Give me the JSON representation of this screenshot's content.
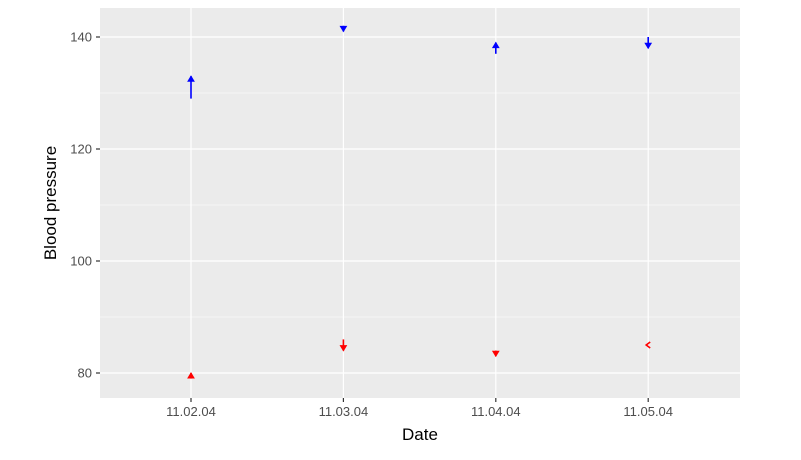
{
  "chart_data": {
    "type": "segment-arrows",
    "title": "",
    "xlabel": "Date",
    "ylabel": "Blood pressure",
    "categories": [
      "11.02.04",
      "11.03.04",
      "11.04.04",
      "11.05.04"
    ],
    "ylim": [
      75,
      145
    ],
    "yticks": [
      80,
      100,
      120,
      140
    ],
    "grid": true,
    "legend": "none",
    "series": [
      {
        "color": "#0000FF",
        "start": [
          129,
          142,
          137,
          140
        ],
        "end": [
          133,
          141,
          139,
          138
        ]
      },
      {
        "color": "#FF0000",
        "start": [
          79,
          86,
          84,
          85
        ],
        "end": [
          80,
          84,
          83,
          85
        ]
      }
    ],
    "panel_background": "#EBEBEB"
  }
}
